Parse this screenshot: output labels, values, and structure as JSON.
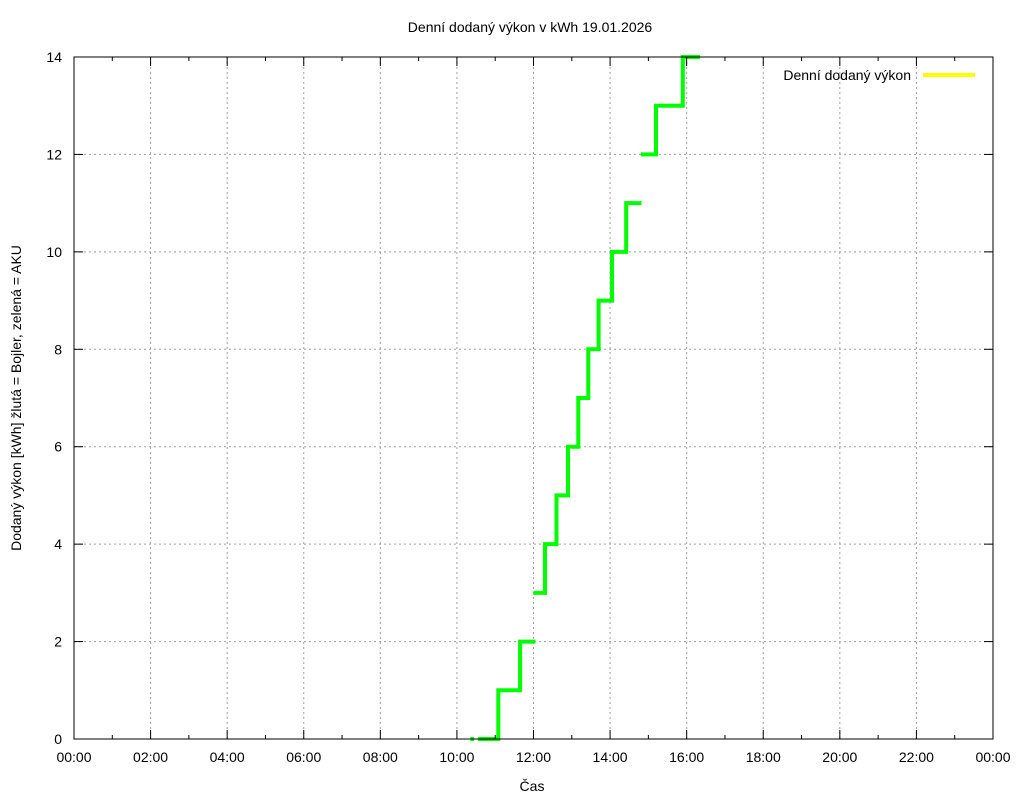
{
  "chart_data": {
    "type": "line",
    "title": "Denní dodaný výkon v kWh 19.01.2026",
    "xlabel": "Čas",
    "ylabel": "Dodaný výkon [kWh]  žlutá = Bojler, zelená = AKU",
    "xlim": [
      0,
      24
    ],
    "ylim": [
      0,
      14
    ],
    "x_tick_labels": [
      "00:00",
      "02:00",
      "04:00",
      "06:00",
      "08:00",
      "10:00",
      "12:00",
      "14:00",
      "16:00",
      "18:00",
      "20:00",
      "22:00",
      "00:00"
    ],
    "y_tick_labels": [
      "0",
      "2",
      "4",
      "6",
      "8",
      "10",
      "12",
      "14"
    ],
    "grid": true,
    "legend": {
      "position": "top-right",
      "entries": [
        {
          "label": "Denní dodaný výkon",
          "color": "#ffff00"
        }
      ]
    },
    "series": [
      {
        "name": "AKU",
        "color": "#00ff00",
        "step": true,
        "segments": [
          [
            [
              10.35,
              0
            ],
            [
              10.45,
              0
            ]
          ],
          [
            [
              10.55,
              0
            ],
            [
              11.08,
              0
            ],
            [
              11.08,
              1
            ],
            [
              11.65,
              1
            ],
            [
              11.65,
              2
            ],
            [
              12.05,
              2
            ]
          ],
          [
            [
              12.0,
              3
            ],
            [
              12.3,
              3
            ],
            [
              12.3,
              4
            ],
            [
              12.6,
              4
            ],
            [
              12.6,
              5
            ],
            [
              12.9,
              5
            ],
            [
              12.9,
              6
            ],
            [
              13.17,
              6
            ],
            [
              13.17,
              7
            ],
            [
              13.43,
              7
            ],
            [
              13.43,
              8
            ],
            [
              13.7,
              8
            ],
            [
              13.7,
              9
            ],
            [
              14.05,
              9
            ],
            [
              14.05,
              10
            ],
            [
              14.42,
              10
            ],
            [
              14.42,
              11
            ],
            [
              14.82,
              11
            ]
          ],
          [
            [
              14.8,
              12
            ],
            [
              15.2,
              12
            ],
            [
              15.2,
              13
            ],
            [
              15.9,
              13
            ],
            [
              15.9,
              14
            ],
            [
              16.35,
              14
            ]
          ]
        ]
      },
      {
        "name": "Bojler",
        "color": "#ffff00",
        "step": true,
        "segments": []
      }
    ]
  }
}
